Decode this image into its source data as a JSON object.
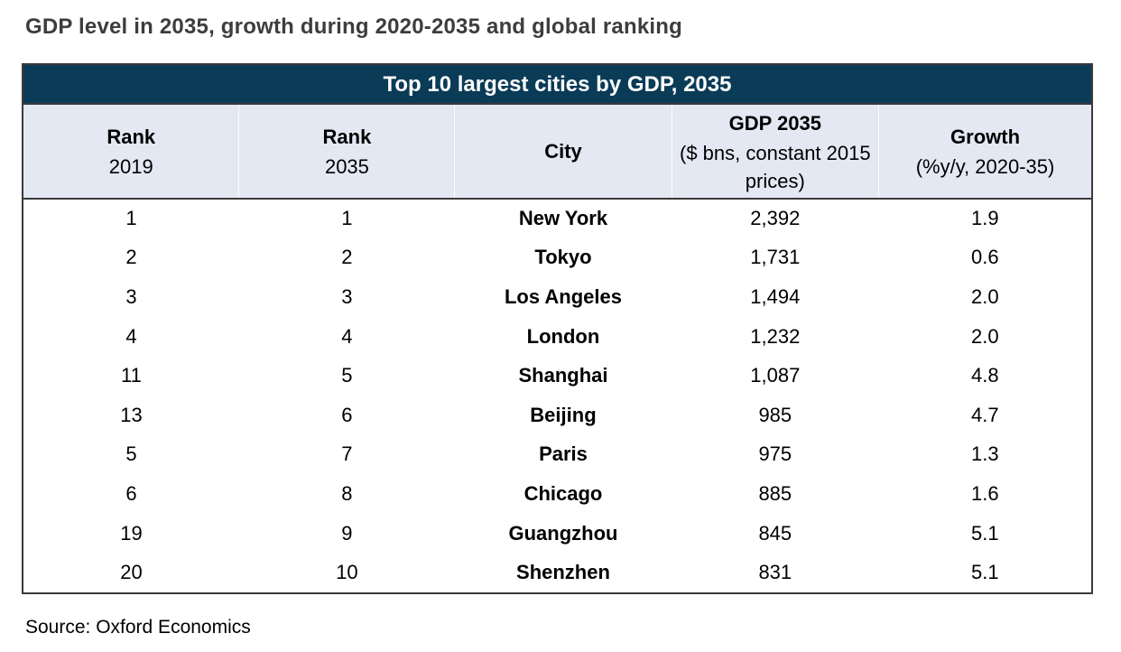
{
  "page": {
    "title": "GDP level in 2035, growth during 2020-2035 and global ranking",
    "source": "Source: Oxford Economics"
  },
  "table": {
    "caption": "Top 10 largest cities by GDP, 2035",
    "columns": [
      {
        "label": "Rank",
        "sub": "2019"
      },
      {
        "label": "Rank",
        "sub": "2035"
      },
      {
        "label": "City"
      },
      {
        "label": "GDP 2035",
        "sub": "($ bns, constant 2015 prices)"
      },
      {
        "label": "Growth",
        "sub": "(%y/y, 2020-35)"
      }
    ],
    "rows": [
      {
        "rank_2019": "1",
        "rank_2035": "1",
        "city": "New York",
        "gdp_2035": "2,392",
        "growth": "1.9"
      },
      {
        "rank_2019": "2",
        "rank_2035": "2",
        "city": "Tokyo",
        "gdp_2035": "1,731",
        "growth": "0.6"
      },
      {
        "rank_2019": "3",
        "rank_2035": "3",
        "city": "Los Angeles",
        "gdp_2035": "1,494",
        "growth": "2.0"
      },
      {
        "rank_2019": "4",
        "rank_2035": "4",
        "city": "London",
        "gdp_2035": "1,232",
        "growth": "2.0"
      },
      {
        "rank_2019": "11",
        "rank_2035": "5",
        "city": "Shanghai",
        "gdp_2035": "1,087",
        "growth": "4.8"
      },
      {
        "rank_2019": "13",
        "rank_2035": "6",
        "city": "Beijing",
        "gdp_2035": "985",
        "growth": "4.7"
      },
      {
        "rank_2019": "5",
        "rank_2035": "7",
        "city": "Paris",
        "gdp_2035": "975",
        "growth": "1.3"
      },
      {
        "rank_2019": "6",
        "rank_2035": "8",
        "city": "Chicago",
        "gdp_2035": "885",
        "growth": "1.6"
      },
      {
        "rank_2019": "19",
        "rank_2035": "9",
        "city": "Guangzhou",
        "gdp_2035": "845",
        "growth": "5.1"
      },
      {
        "rank_2019": "20",
        "rank_2035": "10",
        "city": "Shenzhen",
        "gdp_2035": "831",
        "growth": "5.1"
      }
    ]
  },
  "colors": {
    "caption_bar_bg": "#0a3b57",
    "caption_text": "#ffffff",
    "header_row_bg": "#e4e8f3",
    "border": "#3a3a3a",
    "title_text": "#3d3d3d",
    "body_text": "#000000"
  },
  "chart_data": {
    "type": "table",
    "title": "Top 10 largest cities by GDP, 2035",
    "figure_heading": "GDP level in 2035, growth during 2020-2035 and global ranking",
    "columns": [
      "Rank 2019",
      "Rank 2035",
      "City",
      "GDP 2035 ($ bns, constant 2015 prices)",
      "Growth (%y/y, 2020-35)"
    ],
    "rows": [
      [
        1,
        1,
        "New York",
        2392,
        1.9
      ],
      [
        2,
        2,
        "Tokyo",
        1731,
        0.6
      ],
      [
        3,
        3,
        "Los Angeles",
        1494,
        2.0
      ],
      [
        4,
        4,
        "London",
        1232,
        2.0
      ],
      [
        11,
        5,
        "Shanghai",
        1087,
        4.8
      ],
      [
        13,
        6,
        "Beijing",
        985,
        4.7
      ],
      [
        5,
        7,
        "Paris",
        975,
        1.3
      ],
      [
        6,
        8,
        "Chicago",
        885,
        1.6
      ],
      [
        19,
        9,
        "Guangzhou",
        845,
        5.1
      ],
      [
        20,
        10,
        "Shenzhen",
        831,
        5.1
      ]
    ],
    "source": "Source: Oxford Economics"
  }
}
